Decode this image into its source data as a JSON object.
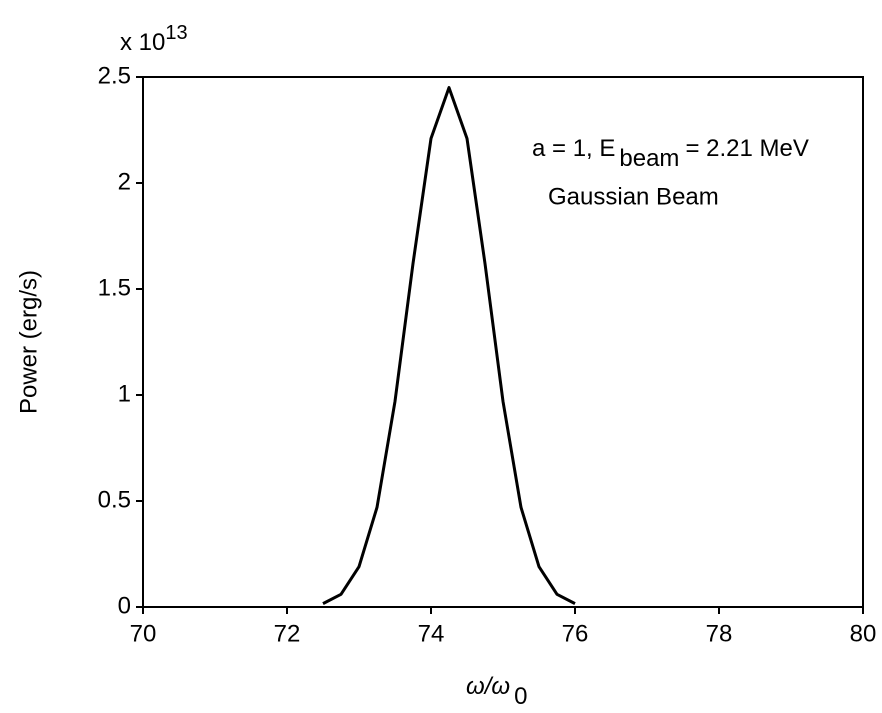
{
  "chart_data": {
    "type": "line",
    "y_label": "Power (erg/s)",
    "x_label": {
      "main": "ω/ω",
      "sub": "0"
    },
    "multiplier": {
      "base": "x 10",
      "exponent": "13"
    },
    "annotation": {
      "prefix": "a = 1, E",
      "sub": "beam",
      "suffix": "= 2.21 MeV",
      "line2": "Gaussian Beam"
    },
    "x": [
      72.5,
      72.75,
      73,
      73.25,
      73.5,
      73.75,
      74,
      74.25,
      74.5,
      74.75,
      75,
      75.25,
      75.5,
      75.75,
      76
    ],
    "series": [
      {
        "name": "Gaussian Beam",
        "color": "#000000",
        "values": [
          0.016,
          0.06,
          0.19,
          0.47,
          0.97,
          1.62,
          2.21,
          2.45,
          2.21,
          1.62,
          0.97,
          0.47,
          0.19,
          0.06,
          0.016
        ]
      }
    ],
    "xlim": [
      70,
      80
    ],
    "xticks": [
      70,
      72,
      74,
      76,
      78,
      80
    ],
    "ylim": [
      0,
      2.5
    ],
    "yticks": [
      0,
      0.5,
      1,
      1.5,
      2,
      2.5
    ]
  }
}
